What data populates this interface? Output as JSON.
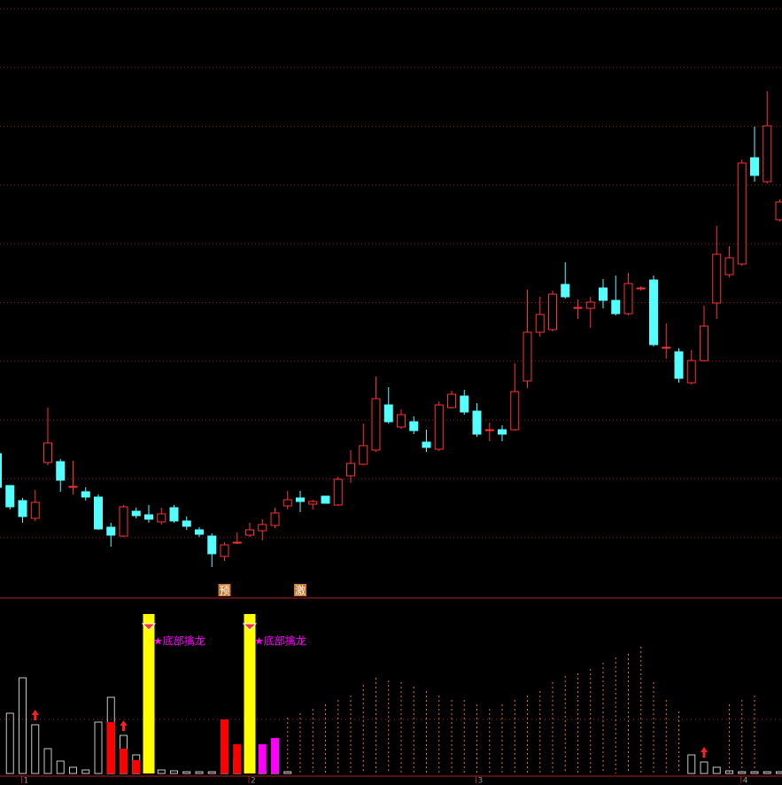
{
  "chart_data": {
    "type": "candlestick",
    "up_color": "#ff3232",
    "down_color": "#54ffff",
    "ylim": [
      0,
      650
    ],
    "open": [
      138,
      102,
      85,
      65,
      128,
      129,
      101,
      95,
      89,
      55,
      45,
      73,
      69,
      61,
      77,
      62,
      52,
      45,
      22,
      38,
      46,
      51,
      57,
      79,
      88,
      81,
      90,
      80,
      113,
      126,
      142,
      193,
      168,
      174,
      151,
      143,
      190,
      203,
      186,
      165,
      165,
      165,
      220,
      275,
      278,
      329,
      303,
      302,
      325,
      311,
      296,
      325,
      334,
      258,
      253,
      218,
      243,
      308,
      340,
      352,
      472,
      445,
      402
    ],
    "high": [
      138,
      102,
      88,
      97,
      190,
      132,
      130,
      100,
      92,
      60,
      80,
      77,
      80,
      77,
      80,
      67,
      55,
      48,
      38,
      49,
      60,
      64,
      77,
      96,
      96,
      86,
      90,
      112,
      142,
      172,
      225,
      213,
      188,
      180,
      165,
      197,
      209,
      210,
      195,
      173,
      170,
      240,
      323,
      315,
      322,
      354,
      312,
      315,
      335,
      339,
      342,
      327,
      339,
      285,
      257,
      255,
      305,
      395,
      372,
      470,
      507,
      547,
      425
    ],
    "low": [
      100,
      75,
      60,
      62,
      125,
      95,
      92,
      85,
      52,
      33,
      44,
      65,
      60,
      58,
      60,
      52,
      44,
      10,
      17,
      36,
      44,
      40,
      54,
      75,
      72,
      75,
      82,
      79,
      105,
      125,
      140,
      172,
      166,
      160,
      140,
      141,
      189,
      182,
      157,
      152,
      152,
      164,
      212,
      270,
      276,
      313,
      290,
      280,
      302,
      294,
      294,
      322,
      259,
      245,
      218,
      216,
      242,
      290,
      337,
      350,
      445,
      443,
      400
    ],
    "close": [
      100,
      78,
      67,
      83,
      150,
      108,
      101,
      89,
      53,
      46,
      78,
      68,
      64,
      70,
      62,
      56,
      47,
      25,
      35,
      38,
      52,
      58,
      71,
      86,
      84,
      84,
      82,
      109,
      127,
      147,
      200,
      174,
      182,
      164,
      145,
      193,
      205,
      185,
      160,
      165,
      160,
      208,
      275,
      295,
      318,
      315,
      303,
      309,
      311,
      296,
      330,
      325,
      261,
      258,
      223,
      243,
      282,
      363,
      359,
      466,
      452,
      508,
      422
    ],
    "volume_ylim": [
      0,
      180
    ],
    "volume": [
      null,
      68,
      108,
      55,
      28,
      14,
      7,
      4,
      58,
      86,
      43,
      21,
      null,
      4,
      3,
      2,
      2,
      2,
      32,
      16,
      null,
      3,
      3,
      2,
      null,
      null,
      null,
      null,
      null,
      null,
      null,
      null,
      null,
      null,
      null,
      null,
      null,
      null,
      null,
      null,
      null,
      null,
      null,
      null,
      null,
      null,
      null,
      null,
      null,
      null,
      null,
      null,
      null,
      null,
      null,
      21,
      13,
      7,
      3,
      2,
      2,
      2,
      2
    ],
    "volume_color": "#c8c8c8",
    "trend": [
      null,
      null,
      null,
      null,
      null,
      null,
      null,
      null,
      null,
      null,
      null,
      null,
      null,
      null,
      null,
      null,
      null,
      null,
      null,
      null,
      null,
      null,
      null,
      63,
      68,
      73,
      78,
      83,
      88,
      100,
      108,
      105,
      103,
      98,
      93,
      88,
      83,
      83,
      78,
      73,
      78,
      83,
      88,
      93,
      103,
      110,
      113,
      118,
      125,
      131,
      135,
      143,
      103,
      83,
      70,
      null,
      null,
      null,
      78,
      83,
      88,
      null,
      null
    ],
    "trend_color": "#e07030",
    "red_bars": [
      null,
      null,
      null,
      null,
      null,
      null,
      null,
      null,
      null,
      58,
      28,
      15,
      null,
      null,
      null,
      null,
      null,
      null,
      61,
      33,
      null,
      null,
      null,
      null,
      null,
      null,
      null,
      null,
      null,
      null,
      null,
      null,
      null,
      null,
      null,
      null,
      null,
      null,
      null,
      null,
      null,
      null,
      null,
      null,
      null,
      null,
      null,
      null,
      null,
      null,
      null,
      null,
      null,
      null,
      null,
      null,
      null,
      null,
      null,
      null,
      null,
      null,
      null
    ],
    "red_bars_color": "#ff0000",
    "magenta_bars": [
      null,
      null,
      null,
      null,
      null,
      null,
      null,
      null,
      null,
      null,
      null,
      null,
      null,
      null,
      null,
      null,
      null,
      null,
      null,
      null,
      null,
      33,
      40,
      null,
      null,
      null,
      null,
      null,
      null,
      null,
      null,
      null,
      null,
      null,
      null,
      null,
      null,
      null,
      null,
      null,
      null,
      null,
      null,
      null,
      null,
      null,
      null,
      null,
      null,
      null,
      null,
      null,
      null,
      null,
      null,
      null,
      null,
      null,
      null,
      null,
      null,
      null,
      null
    ],
    "magenta_color": "#ff00ff",
    "signals": [
      {
        "index": 12,
        "text": "★底部擒龙"
      },
      {
        "index": 20,
        "text": "★底部擒龙"
      }
    ],
    "signal_color": "#ffff00",
    "up_arrows": [
      3,
      10,
      56
    ],
    "markers": [
      {
        "index": 18,
        "text": "预"
      },
      {
        "index": 24,
        "text": "激"
      }
    ],
    "month_ticks": [
      {
        "value": 2,
        "label": "1"
      },
      {
        "value": 20,
        "label": "2"
      },
      {
        "value": 38,
        "label": "3"
      },
      {
        "value": 59,
        "label": "4"
      }
    ]
  }
}
